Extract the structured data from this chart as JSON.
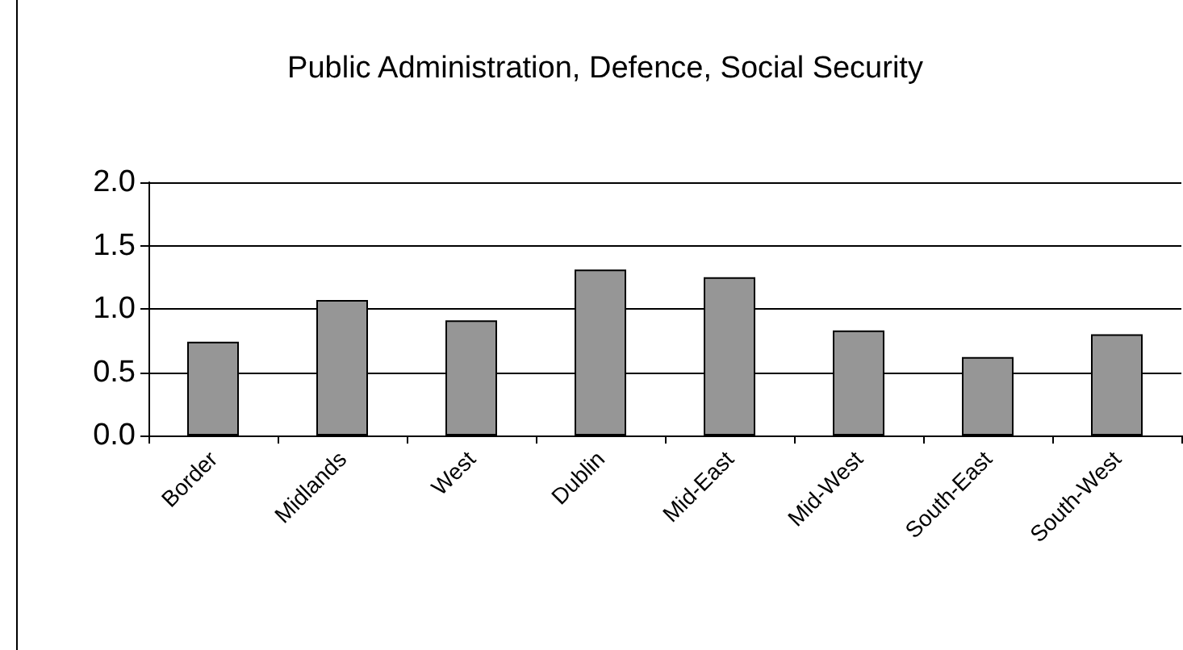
{
  "chart_data": {
    "type": "bar",
    "title": "Public Administration, Defence, Social Security",
    "categories": [
      "Border",
      "Midlands",
      "West",
      "Dublin",
      "Mid-East",
      "Mid-West",
      "South-East",
      "South-West"
    ],
    "values": [
      0.74,
      1.07,
      0.91,
      1.31,
      1.25,
      0.83,
      0.62,
      0.8
    ],
    "color": "#969696",
    "ylim": [
      0,
      2
    ],
    "yticks": [
      {
        "value": 0,
        "label": "0.0"
      },
      {
        "value": 0.5,
        "label": "0.5"
      },
      {
        "value": 1,
        "label": "1.0"
      },
      {
        "value": 1.5,
        "label": "1.5"
      },
      {
        "value": 2,
        "label": "2.0"
      }
    ],
    "grid": "y"
  }
}
